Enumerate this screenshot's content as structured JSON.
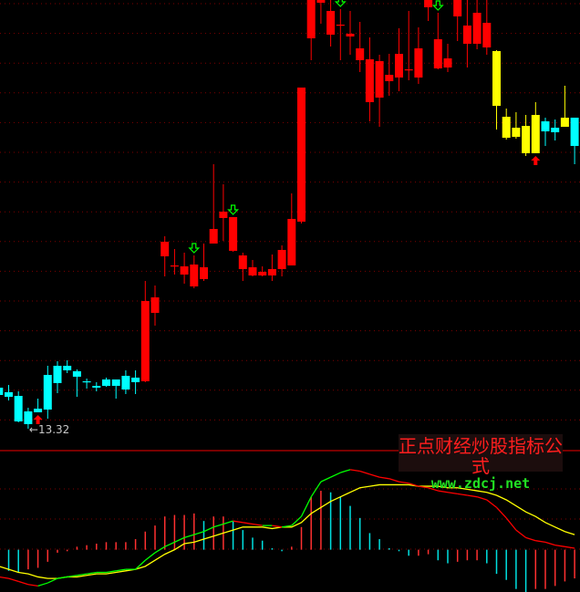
{
  "chart_data": [
    {
      "type": "candlestick",
      "title": "",
      "ylim": [
        12.96,
        22.72
      ],
      "grid": true,
      "colors": {
        "up": "#ff0000",
        "down": "#00ffff",
        "warn": "#ffff00",
        "buy_arrow": "#ff0000",
        "sell_arrow": "#00ff00",
        "grid": "#800000"
      },
      "candles": [
        {
          "o": 14.22,
          "h": 14.32,
          "l": 13.96,
          "c": 14.06,
          "color": "#00ffff"
        },
        {
          "o": 14.12,
          "h": 14.28,
          "l": 13.94,
          "c": 14.02,
          "color": "#00ffff"
        },
        {
          "o": 14.04,
          "h": 14.14,
          "l": 13.46,
          "c": 13.48,
          "color": "#00ffff"
        },
        {
          "o": 13.7,
          "h": 13.78,
          "l": 13.32,
          "c": 13.42,
          "color": "#00ffff"
        },
        {
          "o": 13.76,
          "h": 13.98,
          "l": 13.68,
          "c": 13.68,
          "color": "#00ffff"
        },
        {
          "o": 14.5,
          "h": 14.7,
          "l": 13.54,
          "c": 13.74,
          "color": "#00ffff"
        },
        {
          "o": 14.7,
          "h": 14.8,
          "l": 14.1,
          "c": 14.32,
          "color": "#00ffff"
        },
        {
          "o": 14.7,
          "h": 14.82,
          "l": 14.54,
          "c": 14.6,
          "color": "#00ffff"
        },
        {
          "o": 14.58,
          "h": 14.62,
          "l": 14.02,
          "c": 14.46,
          "color": "#00ffff"
        },
        {
          "o": 14.36,
          "h": 14.42,
          "l": 14.2,
          "c": 14.36,
          "color": "#00ffff"
        },
        {
          "o": 14.26,
          "h": 14.34,
          "l": 14.14,
          "c": 14.22,
          "color": "#00ffff"
        },
        {
          "o": 14.4,
          "h": 14.44,
          "l": 14.24,
          "c": 14.26,
          "color": "#00ffff"
        },
        {
          "o": 14.4,
          "h": 14.4,
          "l": 13.98,
          "c": 14.26,
          "color": "#00ffff"
        },
        {
          "o": 14.48,
          "h": 14.6,
          "l": 14.08,
          "c": 14.18,
          "color": "#00ffff"
        },
        {
          "o": 14.44,
          "h": 14.6,
          "l": 14.08,
          "c": 14.34,
          "color": "#00ffff"
        },
        {
          "o": 14.36,
          "h": 16.56,
          "l": 14.34,
          "c": 16.12,
          "color": "#ff0000"
        },
        {
          "o": 15.86,
          "h": 16.46,
          "l": 15.58,
          "c": 16.2,
          "color": "#ff0000"
        },
        {
          "o": 17.1,
          "h": 17.54,
          "l": 16.66,
          "c": 17.42,
          "color": "#ff0000"
        },
        {
          "o": 16.9,
          "h": 17.26,
          "l": 16.7,
          "c": 16.9,
          "color": "#ff0000"
        },
        {
          "o": 16.7,
          "h": 17.18,
          "l": 16.5,
          "c": 16.88,
          "color": "#ff0000"
        },
        {
          "o": 16.44,
          "h": 17.12,
          "l": 16.4,
          "c": 16.92,
          "color": "#ff0000"
        },
        {
          "o": 16.6,
          "h": 17.38,
          "l": 16.56,
          "c": 16.86,
          "color": "#ff0000"
        },
        {
          "o": 17.38,
          "h": 19.12,
          "l": 17.38,
          "c": 17.7,
          "color": "#ff0000"
        },
        {
          "o": 17.94,
          "h": 18.68,
          "l": 17.44,
          "c": 18.08,
          "color": "#ff0000"
        },
        {
          "o": 17.22,
          "h": 17.96,
          "l": 17.2,
          "c": 17.96,
          "color": "#ff0000"
        },
        {
          "o": 16.82,
          "h": 17.18,
          "l": 16.56,
          "c": 17.12,
          "color": "#ff0000"
        },
        {
          "o": 16.68,
          "h": 17.02,
          "l": 16.66,
          "c": 16.86,
          "color": "#ff0000"
        },
        {
          "o": 16.68,
          "h": 16.88,
          "l": 16.66,
          "c": 16.76,
          "color": "#ff0000"
        },
        {
          "o": 16.68,
          "h": 17.14,
          "l": 16.56,
          "c": 16.82,
          "color": "#ff0000"
        },
        {
          "o": 16.82,
          "h": 17.34,
          "l": 16.66,
          "c": 17.24,
          "color": "#ff0000"
        },
        {
          "o": 16.9,
          "h": 18.48,
          "l": 16.9,
          "c": 17.92,
          "color": "#ff0000"
        },
        {
          "o": 17.86,
          "h": 20.8,
          "l": 17.82,
          "c": 20.8,
          "color": "#ff0000"
        },
        {
          "o": 21.88,
          "h": 22.82,
          "l": 21.4,
          "c": 22.72,
          "color": "#ff0000"
        },
        {
          "o": 22.66,
          "h": 22.82,
          "l": 22.2,
          "c": 22.72,
          "color": "#ff0000"
        },
        {
          "o": 21.96,
          "h": 22.82,
          "l": 21.7,
          "c": 22.48,
          "color": "#ff0000"
        },
        {
          "o": 22.18,
          "h": 22.52,
          "l": 21.4,
          "c": 22.18,
          "color": "#ff0000"
        },
        {
          "o": 21.92,
          "h": 22.48,
          "l": 21.52,
          "c": 21.98,
          "color": "#ff0000"
        },
        {
          "o": 21.4,
          "h": 22.24,
          "l": 21.14,
          "c": 21.66,
          "color": "#ff0000"
        },
        {
          "o": 20.48,
          "h": 21.9,
          "l": 20.06,
          "c": 21.42,
          "color": "#ff0000"
        },
        {
          "o": 20.58,
          "h": 21.52,
          "l": 19.94,
          "c": 21.38,
          "color": "#ff0000"
        },
        {
          "o": 20.94,
          "h": 21.54,
          "l": 20.62,
          "c": 21.08,
          "color": "#ff0000"
        },
        {
          "o": 21.02,
          "h": 22.1,
          "l": 20.72,
          "c": 21.54,
          "color": "#ff0000"
        },
        {
          "o": 21.2,
          "h": 22.48,
          "l": 20.96,
          "c": 21.2,
          "color": "#ff0000"
        },
        {
          "o": 21.02,
          "h": 22.12,
          "l": 20.88,
          "c": 21.66,
          "color": "#ff0000"
        },
        {
          "o": 22.56,
          "h": 22.82,
          "l": 22.26,
          "c": 22.72,
          "color": "#ff0000"
        },
        {
          "o": 21.22,
          "h": 22.44,
          "l": 21.2,
          "c": 21.86,
          "color": "#ff0000"
        },
        {
          "o": 21.24,
          "h": 21.76,
          "l": 21.14,
          "c": 21.44,
          "color": "#ff0000"
        },
        {
          "o": 22.36,
          "h": 22.82,
          "l": 21.82,
          "c": 22.72,
          "color": "#ff0000"
        },
        {
          "o": 21.76,
          "h": 22.82,
          "l": 21.24,
          "c": 22.16,
          "color": "#ff0000"
        },
        {
          "o": 21.76,
          "h": 22.82,
          "l": 21.64,
          "c": 22.44,
          "color": "#ff0000"
        },
        {
          "o": 21.68,
          "h": 22.82,
          "l": 21.52,
          "c": 22.22,
          "color": "#ff0000"
        },
        {
          "o": 21.6,
          "h": 21.62,
          "l": 19.88,
          "c": 20.4,
          "color": "#ffff00"
        },
        {
          "o": 20.16,
          "h": 20.34,
          "l": 19.66,
          "c": 19.7,
          "color": "#ffff00"
        },
        {
          "o": 19.92,
          "h": 20.26,
          "l": 19.68,
          "c": 19.72,
          "color": "#ffff00"
        },
        {
          "o": 19.96,
          "h": 20.2,
          "l": 19.3,
          "c": 19.36,
          "color": "#ffff00"
        },
        {
          "o": 19.36,
          "h": 20.48,
          "l": 19.36,
          "c": 20.2,
          "color": "#ffff00"
        },
        {
          "o": 20.06,
          "h": 20.14,
          "l": 19.52,
          "c": 19.84,
          "color": "#00ffff"
        },
        {
          "o": 19.92,
          "h": 20.1,
          "l": 19.64,
          "c": 19.82,
          "color": "#00ffff"
        },
        {
          "o": 20.14,
          "h": 20.84,
          "l": 19.94,
          "c": 19.94,
          "color": "#ffff00"
        },
        {
          "o": 20.14,
          "h": 20.14,
          "l": 19.12,
          "c": 19.52,
          "color": "#00ffff"
        }
      ],
      "buy_signals": [
        4,
        55
      ],
      "sell_signals": [
        20,
        24,
        35,
        45
      ],
      "low_annotation": {
        "index": 3,
        "label": "13.32"
      }
    },
    {
      "type": "macd",
      "ylim": [
        -0.28,
        0.65
      ],
      "grid": true,
      "colors": {
        "dif_up": "#00ff00",
        "dif_down": "#ff0000",
        "dea": "#ffff00",
        "hist_up": "#ff3030",
        "hist_down": "#00e0e0"
      },
      "dif": [
        -0.18,
        -0.19,
        -0.21,
        -0.23,
        -0.24,
        -0.22,
        -0.19,
        -0.18,
        -0.17,
        -0.16,
        -0.15,
        -0.15,
        -0.14,
        -0.13,
        -0.13,
        -0.07,
        -0.02,
        0.02,
        0.05,
        0.08,
        0.1,
        0.12,
        0.15,
        0.17,
        0.19,
        0.18,
        0.17,
        0.16,
        0.16,
        0.15,
        0.16,
        0.22,
        0.35,
        0.45,
        0.48,
        0.51,
        0.53,
        0.52,
        0.5,
        0.48,
        0.47,
        0.45,
        0.44,
        0.42,
        0.41,
        0.39,
        0.38,
        0.37,
        0.36,
        0.35,
        0.33,
        0.28,
        0.21,
        0.13,
        0.08,
        0.06,
        0.05,
        0.03,
        0.02,
        0.01
      ],
      "dea": [
        -0.11,
        -0.13,
        -0.15,
        -0.16,
        -0.18,
        -0.19,
        -0.19,
        -0.18,
        -0.18,
        -0.17,
        -0.16,
        -0.16,
        -0.15,
        -0.14,
        -0.13,
        -0.11,
        -0.07,
        -0.03,
        0.0,
        0.04,
        0.05,
        0.07,
        0.09,
        0.11,
        0.13,
        0.15,
        0.15,
        0.15,
        0.14,
        0.15,
        0.15,
        0.18,
        0.24,
        0.28,
        0.32,
        0.35,
        0.38,
        0.41,
        0.42,
        0.43,
        0.43,
        0.43,
        0.43,
        0.42,
        0.42,
        0.42,
        0.41,
        0.41,
        0.4,
        0.39,
        0.38,
        0.36,
        0.33,
        0.29,
        0.25,
        0.22,
        0.18,
        0.15,
        0.12,
        0.1
      ],
      "histogram": [
        null,
        -0.14,
        -0.15,
        -0.13,
        -0.12,
        -0.08,
        -0.02,
        -0.01,
        0.02,
        0.03,
        0.04,
        0.05,
        0.05,
        0.05,
        0.07,
        0.12,
        0.16,
        0.22,
        0.23,
        0.23,
        0.24,
        0.19,
        0.22,
        0.22,
        0.19,
        0.13,
        0.08,
        0.06,
        0.01,
        -0.01,
        0.02,
        0.15,
        0.35,
        0.39,
        0.38,
        0.35,
        0.29,
        0.21,
        0.11,
        0.07,
        0.01,
        -0.01,
        -0.04,
        -0.04,
        -0.03,
        -0.07,
        -0.09,
        -0.08,
        -0.07,
        -0.07,
        -0.09,
        -0.16,
        -0.2,
        -0.26,
        -0.28,
        -0.26,
        -0.26,
        -0.24,
        -0.21,
        -0.19
      ]
    }
  ],
  "watermark": {
    "title": "正点财经炒股指标公式",
    "url": "www.zdcj.net"
  }
}
